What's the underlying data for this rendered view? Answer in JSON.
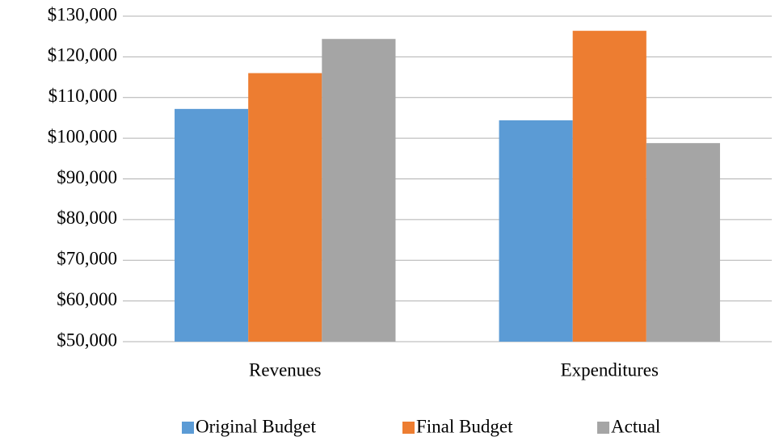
{
  "chart_data": {
    "type": "bar",
    "categories": [
      "Revenues",
      "Expenditures"
    ],
    "series": [
      {
        "name": "Original Budget",
        "color": "#5b9bd5",
        "values": [
          107200,
          104400
        ]
      },
      {
        "name": "Final Budget",
        "color": "#ed7d31",
        "values": [
          116000,
          126400
        ]
      },
      {
        "name": "Actual",
        "color": "#a5a5a5",
        "values": [
          124400,
          98800
        ]
      }
    ],
    "ylim": [
      50000,
      130000
    ],
    "yticks": [
      {
        "value": 50000,
        "label": "$50,000"
      },
      {
        "value": 60000,
        "label": "$60,000"
      },
      {
        "value": 70000,
        "label": "$70,000"
      },
      {
        "value": 80000,
        "label": "$80,000"
      },
      {
        "value": 90000,
        "label": "$90,000"
      },
      {
        "value": 100000,
        "label": "$100,000"
      },
      {
        "value": 110000,
        "label": "$110,000"
      },
      {
        "value": 120000,
        "label": "$120,000"
      },
      {
        "value": 130000,
        "label": "$130,000"
      }
    ],
    "grid": true,
    "legend": "bottom"
  }
}
